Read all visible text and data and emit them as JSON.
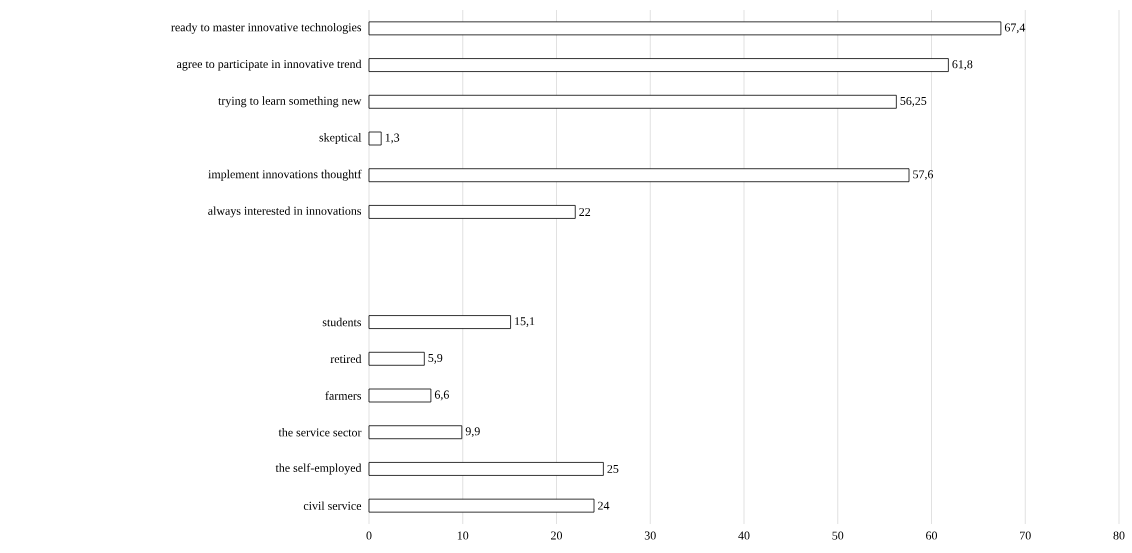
{
  "chart_data": {
    "type": "bar",
    "orientation": "horizontal",
    "categories": [
      "ready to master innovative technologies",
      "agree to participate in innovative trend",
      "trying to learn something new",
      "skeptical",
      "implement innovations thoughtf",
      "always interested in innovations",
      null,
      null,
      "students",
      "retired",
      "farmers",
      "the service sector",
      "the self-employed",
      "civil service"
    ],
    "values": [
      67.4,
      61.8,
      56.25,
      1.3,
      57.6,
      22,
      null,
      null,
      15.1,
      5.9,
      6.6,
      9.9,
      25,
      24
    ],
    "value_labels": [
      "67,4",
      "61,8",
      "56,25",
      "1,3",
      "57,6",
      "22",
      null,
      null,
      "15,1",
      "5,9",
      "6,6",
      "9,9",
      "25",
      "24"
    ],
    "color": "#ffffff",
    "xlim": [
      0,
      80
    ],
    "xticks": [
      0,
      10,
      20,
      30,
      40,
      50,
      60,
      70,
      80
    ],
    "grid": "x"
  }
}
